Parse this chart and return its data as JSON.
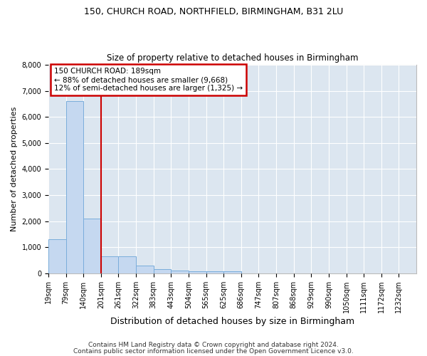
{
  "title1": "150, CHURCH ROAD, NORTHFIELD, BIRMINGHAM, B31 2LU",
  "title2": "Size of property relative to detached houses in Birmingham",
  "xlabel": "Distribution of detached houses by size in Birmingham",
  "ylabel": "Number of detached properties",
  "footnote1": "Contains HM Land Registry data © Crown copyright and database right 2024.",
  "footnote2": "Contains public sector information licensed under the Open Government Licence v3.0.",
  "bin_labels": [
    "19sqm",
    "79sqm",
    "140sqm",
    "201sqm",
    "261sqm",
    "322sqm",
    "383sqm",
    "443sqm",
    "504sqm",
    "565sqm",
    "625sqm",
    "686sqm",
    "747sqm",
    "807sqm",
    "868sqm",
    "929sqm",
    "990sqm",
    "1050sqm",
    "1111sqm",
    "1172sqm",
    "1232sqm"
  ],
  "bar_heights": [
    1300,
    6600,
    2090,
    650,
    650,
    300,
    145,
    110,
    75,
    75,
    65,
    0,
    0,
    0,
    0,
    0,
    0,
    0,
    0,
    0,
    0
  ],
  "bar_color": "#c5d8f0",
  "bar_edge_color": "#7aaddb",
  "subject_line_label": "150 CHURCH ROAD: 189sqm",
  "annotation_line1": "← 88% of detached houses are smaller (9,668)",
  "annotation_line2": "12% of semi-detached houses are larger (1,325) →",
  "annotation_box_color": "#ffffff",
  "annotation_box_edge": "#cc0000",
  "vline_color": "#cc0000",
  "vline_x_bar_index": 3,
  "ylim": [
    0,
    8000
  ],
  "yticks": [
    0,
    1000,
    2000,
    3000,
    4000,
    5000,
    6000,
    7000,
    8000
  ],
  "grid_color": "#ffffff",
  "plot_bg_color": "#dce6f0",
  "fig_bg_color": "#ffffff",
  "title1_fontsize": 9,
  "title2_fontsize": 8.5,
  "ylabel_fontsize": 8,
  "xlabel_fontsize": 9,
  "tick_fontsize": 7,
  "annotation_fontsize": 7.5,
  "footnote_fontsize": 6.5
}
